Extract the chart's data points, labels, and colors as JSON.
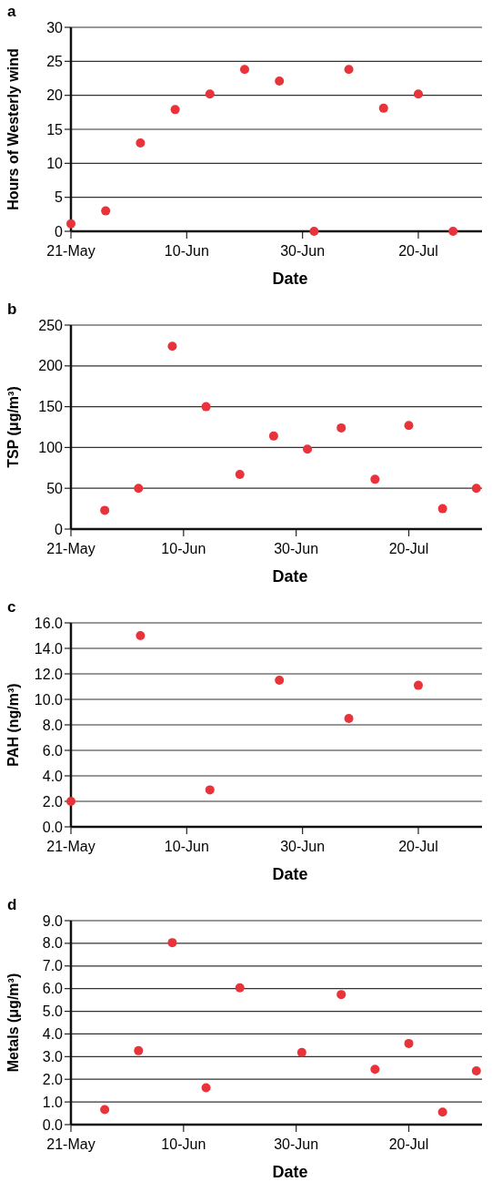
{
  "chart_data": [
    {
      "type": "scatter",
      "title": "a",
      "xlabel": "Date",
      "ylabel": "Hours of Westerly wind",
      "x": [
        "--05-21",
        "--05-27",
        "--06-02",
        "--06-08",
        "--06-14",
        "--06-20",
        "--06-26",
        "--07-02",
        "--07-08",
        "--07-14",
        "--07-20",
        "--07-26"
      ],
      "series": [
        {
          "color": "#e8333a",
          "values": [
            1.1,
            3.0,
            13.0,
            17.9,
            20.2,
            23.8,
            22.1,
            0,
            23.8,
            18.1,
            20.2,
            0
          ]
        }
      ],
      "xlim": [
        "--05-21",
        "--07-31"
      ],
      "xticks": [
        {
          "value": "--05-21",
          "label": "21-May"
        },
        {
          "value": "--06-10",
          "label": "10-Jun"
        },
        {
          "value": "--06-30",
          "label": "30-Jun"
        },
        {
          "value": "--07-20",
          "label": "20-Jul"
        }
      ],
      "ylim": [
        0,
        30
      ],
      "yticks": [
        0,
        5,
        10,
        15,
        20,
        25,
        30
      ],
      "grid": "y",
      "marker": "circle"
    },
    {
      "type": "scatter",
      "title": "b",
      "xlabel": "Date",
      "ylabel": "TSP (μg/m³)",
      "x": [
        "--05-27",
        "--06-02",
        "--06-08",
        "--06-14",
        "--06-20",
        "--06-26",
        "--07-02",
        "--07-08",
        "--07-14",
        "--07-20",
        "--07-26",
        "--08-01"
      ],
      "series": [
        {
          "color": "#e8333a",
          "values": [
            23,
            50,
            224,
            150,
            67,
            114,
            98,
            124,
            61,
            127,
            25,
            50
          ]
        }
      ],
      "xlim": [
        "--05-21",
        "--08-02"
      ],
      "xticks": [
        {
          "value": "--05-21",
          "label": "21-May"
        },
        {
          "value": "--06-10",
          "label": "10-Jun"
        },
        {
          "value": "--06-30",
          "label": "30-Jun"
        },
        {
          "value": "--07-20",
          "label": "20-Jul"
        }
      ],
      "ylim": [
        0,
        250
      ],
      "yticks": [
        0,
        50,
        100,
        150,
        200,
        250
      ],
      "grid": "y",
      "marker": "circle"
    },
    {
      "type": "scatter",
      "title": "c",
      "xlabel": "Date",
      "ylabel": "PAH (ng/m³)",
      "x": [
        "--05-21",
        "--06-02",
        "--06-14",
        "--06-26",
        "--07-08",
        "--07-20"
      ],
      "series": [
        {
          "color": "#e8333a",
          "values": [
            2.0,
            15.0,
            2.9,
            11.5,
            8.5,
            11.1
          ]
        }
      ],
      "xlim": [
        "--05-21",
        "--07-31"
      ],
      "xticks": [
        {
          "value": "--05-21",
          "label": "21-May"
        },
        {
          "value": "--06-10",
          "label": "10-Jun"
        },
        {
          "value": "--06-30",
          "label": "30-Jun"
        },
        {
          "value": "--07-20",
          "label": "20-Jul"
        }
      ],
      "ylim": [
        0,
        16
      ],
      "yticks": [
        {
          "value": 0,
          "label": "0.0"
        },
        {
          "value": 2,
          "label": "2.0"
        },
        {
          "value": 4,
          "label": "4.0"
        },
        {
          "value": 6,
          "label": "6.0"
        },
        {
          "value": 8,
          "label": "8.0"
        },
        {
          "value": 10,
          "label": "10.0"
        },
        {
          "value": 12,
          "label": "12.0"
        },
        {
          "value": 14,
          "label": "14.0"
        },
        {
          "value": 16,
          "label": "16.0"
        }
      ],
      "grid": "y",
      "marker": "circle"
    },
    {
      "type": "scatter",
      "title": "d",
      "xlabel": "Date",
      "ylabel": "Metals (μg/m³)",
      "x": [
        "--05-27",
        "--06-02",
        "--06-08",
        "--06-14",
        "--06-20",
        "--07-01",
        "--07-08",
        "--07-14",
        "--07-20",
        "--07-26",
        "--08-01"
      ],
      "series": [
        {
          "color": "#e8333a",
          "values": [
            0.66,
            3.26,
            8.03,
            1.63,
            6.04,
            3.18,
            5.74,
            2.44,
            3.58,
            0.55,
            2.37
          ]
        }
      ],
      "xlim": [
        "--05-21",
        "--08-02"
      ],
      "xticks": [
        {
          "value": "--05-21",
          "label": "21-May"
        },
        {
          "value": "--06-10",
          "label": "10-Jun"
        },
        {
          "value": "--06-30",
          "label": "30-Jun"
        },
        {
          "value": "--07-20",
          "label": "20-Jul"
        }
      ],
      "ylim": [
        0,
        9
      ],
      "yticks": [
        {
          "value": 0,
          "label": "0.0"
        },
        {
          "value": 1,
          "label": "1.0"
        },
        {
          "value": 2,
          "label": "2.0"
        },
        {
          "value": 3,
          "label": "3.0"
        },
        {
          "value": 4,
          "label": "4.0"
        },
        {
          "value": 5,
          "label": "5.0"
        },
        {
          "value": 6,
          "label": "6.0"
        },
        {
          "value": 7,
          "label": "7.0"
        },
        {
          "value": 8,
          "label": "8.0"
        },
        {
          "value": 9,
          "label": "9.0"
        }
      ],
      "grid": "y",
      "marker": "circle"
    }
  ]
}
